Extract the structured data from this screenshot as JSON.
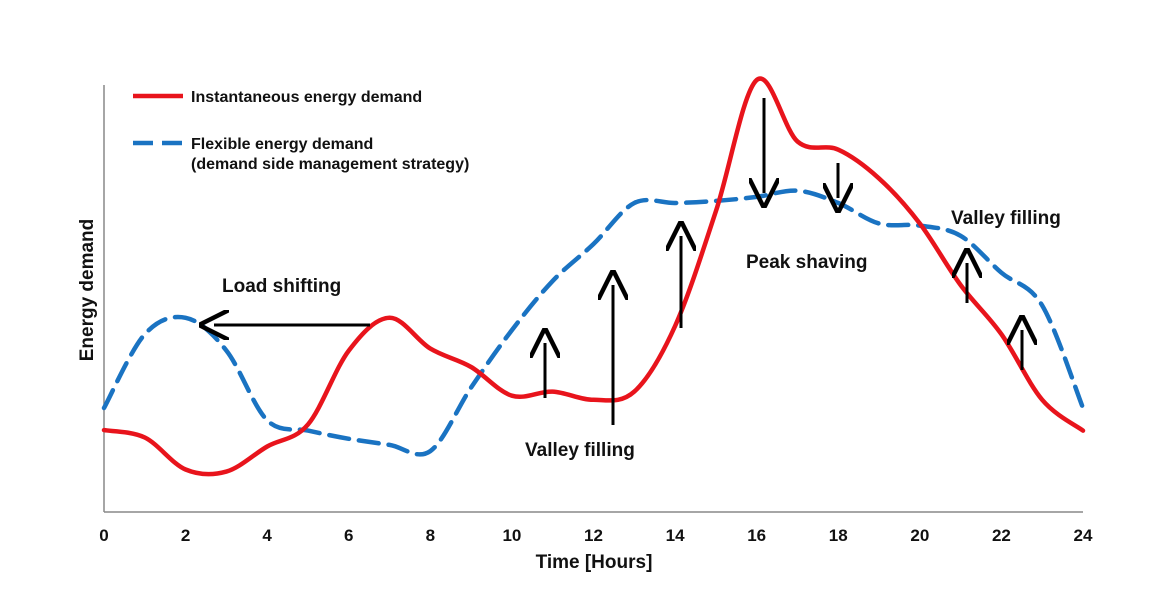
{
  "chart_data": {
    "type": "line",
    "xlabel": "Time [Hours]",
    "ylabel": "Energy demand",
    "xlim": [
      0,
      24
    ],
    "ylim": [
      0,
      1
    ],
    "xticks": [
      "0",
      "2",
      "4",
      "6",
      "8",
      "10",
      "12",
      "14",
      "16",
      "18",
      "20",
      "22",
      "24"
    ],
    "grid": false,
    "legend_placement": "top-left",
    "series": [
      {
        "name": "Instantaneous energy demand",
        "style": "solid",
        "color": "#e8141c",
        "points": [
          [
            0,
            0.146
          ],
          [
            1,
            0.128
          ],
          [
            2,
            0.05
          ],
          [
            3,
            0.045
          ],
          [
            4,
            0.106
          ],
          [
            5,
            0.16
          ],
          [
            6,
            0.34
          ],
          [
            7,
            0.42
          ],
          [
            8,
            0.345
          ],
          [
            9,
            0.3
          ],
          [
            10,
            0.23
          ],
          [
            11,
            0.24
          ],
          [
            12,
            0.22
          ],
          [
            13,
            0.24
          ],
          [
            14,
            0.4
          ],
          [
            15,
            0.68
          ],
          [
            16,
            1.0
          ],
          [
            17,
            0.85
          ],
          [
            18,
            0.83
          ],
          [
            19,
            0.76
          ],
          [
            20,
            0.65
          ],
          [
            21,
            0.5
          ],
          [
            22,
            0.38
          ],
          [
            23,
            0.22
          ],
          [
            24,
            0.145
          ]
        ]
      },
      {
        "name": "Flexible energy demand (demand side management strategy)",
        "style": "dashed",
        "color": "#1a73c2",
        "points": [
          [
            0,
            0.2
          ],
          [
            1,
            0.38
          ],
          [
            2,
            0.42
          ],
          [
            3,
            0.34
          ],
          [
            4,
            0.17
          ],
          [
            5,
            0.145
          ],
          [
            6,
            0.125
          ],
          [
            7,
            0.11
          ],
          [
            8,
            0.095
          ],
          [
            9,
            0.25
          ],
          [
            10,
            0.39
          ],
          [
            11,
            0.51
          ],
          [
            12,
            0.6
          ],
          [
            13,
            0.7
          ],
          [
            14,
            0.7
          ],
          [
            15,
            0.705
          ],
          [
            16,
            0.715
          ],
          [
            17,
            0.73
          ],
          [
            18,
            0.7
          ],
          [
            19,
            0.65
          ],
          [
            20,
            0.645
          ],
          [
            21,
            0.62
          ],
          [
            22,
            0.53
          ],
          [
            23,
            0.45
          ],
          [
            24,
            0.2
          ]
        ]
      }
    ],
    "annotations": [
      {
        "text": "Load shifting"
      },
      {
        "text": "Valley filling"
      },
      {
        "text": "Peak shaving"
      },
      {
        "text": "Valley filling"
      }
    ]
  },
  "legend": {
    "item1": "Instantaneous energy demand",
    "item2_line1": "Flexible energy demand",
    "item2_line2": "(demand side management strategy)"
  }
}
